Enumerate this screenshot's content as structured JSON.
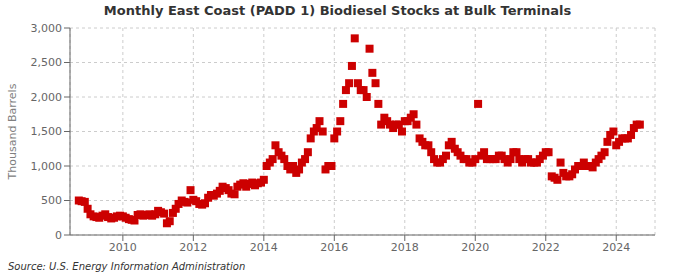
{
  "chart_data": {
    "type": "scatter",
    "title": "Monthly East Coast (PADD 1) Biodiesel Stocks at Bulk Terminals",
    "ylabel": "Thousand Barrels",
    "annotations": [
      "Source: U.S. Energy Information Administration"
    ],
    "color": "#CC0000",
    "marker": "square",
    "grid": true,
    "xlim": [
      2008.5,
      2025.1
    ],
    "xticks": [
      2010,
      2012,
      2014,
      2016,
      2018,
      2020,
      2022,
      2024
    ],
    "ylim": [
      0,
      3000
    ],
    "yticks": [
      0,
      500,
      {
        "value": 1000,
        "label": "1,000"
      },
      {
        "value": 1500,
        "label": "1,500"
      },
      {
        "value": 2000,
        "label": "2,000"
      },
      {
        "value": 2500,
        "label": "2,500"
      },
      {
        "value": 3000,
        "label": "3,000"
      }
    ],
    "x": [
      2008.75,
      2008.83,
      2008.92,
      2009.0,
      2009.08,
      2009.17,
      2009.25,
      2009.33,
      2009.42,
      2009.5,
      2009.58,
      2009.67,
      2009.75,
      2009.83,
      2009.92,
      2010.0,
      2010.08,
      2010.17,
      2010.25,
      2010.33,
      2010.42,
      2010.5,
      2010.58,
      2010.67,
      2010.75,
      2010.83,
      2010.92,
      2011.0,
      2011.08,
      2011.17,
      2011.25,
      2011.33,
      2011.42,
      2011.5,
      2011.58,
      2011.67,
      2011.75,
      2011.83,
      2011.92,
      2012.0,
      2012.08,
      2012.17,
      2012.25,
      2012.33,
      2012.42,
      2012.5,
      2012.58,
      2012.67,
      2012.75,
      2012.83,
      2012.92,
      2013.0,
      2013.08,
      2013.17,
      2013.25,
      2013.33,
      2013.42,
      2013.5,
      2013.58,
      2013.67,
      2013.75,
      2013.83,
      2013.92,
      2014.0,
      2014.08,
      2014.17,
      2014.25,
      2014.33,
      2014.42,
      2014.5,
      2014.58,
      2014.67,
      2014.75,
      2014.83,
      2014.92,
      2015.0,
      2015.08,
      2015.17,
      2015.25,
      2015.33,
      2015.42,
      2015.5,
      2015.58,
      2015.67,
      2015.75,
      2015.83,
      2015.92,
      2016.0,
      2016.08,
      2016.17,
      2016.25,
      2016.33,
      2016.42,
      2016.5,
      2016.58,
      2016.67,
      2016.75,
      2016.83,
      2016.92,
      2017.0,
      2017.08,
      2017.17,
      2017.25,
      2017.33,
      2017.42,
      2017.5,
      2017.58,
      2017.67,
      2017.75,
      2017.83,
      2017.92,
      2018.0,
      2018.08,
      2018.17,
      2018.25,
      2018.33,
      2018.42,
      2018.5,
      2018.58,
      2018.67,
      2018.75,
      2018.83,
      2018.92,
      2019.0,
      2019.08,
      2019.17,
      2019.25,
      2019.33,
      2019.42,
      2019.5,
      2019.58,
      2019.67,
      2019.75,
      2019.83,
      2019.92,
      2020.0,
      2020.08,
      2020.17,
      2020.25,
      2020.33,
      2020.42,
      2020.5,
      2020.58,
      2020.67,
      2020.75,
      2020.83,
      2020.92,
      2021.0,
      2021.08,
      2021.17,
      2021.25,
      2021.33,
      2021.42,
      2021.5,
      2021.58,
      2021.67,
      2021.75,
      2021.83,
      2021.92,
      2022.0,
      2022.08,
      2022.17,
      2022.25,
      2022.33,
      2022.42,
      2022.5,
      2022.58,
      2022.67,
      2022.75,
      2022.83,
      2022.92,
      2023.0,
      2023.08,
      2023.17,
      2023.25,
      2023.33,
      2023.42,
      2023.5,
      2023.58,
      2023.67,
      2023.75,
      2023.83,
      2023.92,
      2024.0,
      2024.08,
      2024.17,
      2024.25,
      2024.33,
      2024.42,
      2024.5,
      2024.58,
      2024.67
    ],
    "values": [
      500,
      490,
      480,
      380,
      300,
      270,
      260,
      250,
      280,
      300,
      260,
      240,
      250,
      270,
      280,
      270,
      250,
      230,
      220,
      210,
      290,
      300,
      280,
      290,
      300,
      280,
      300,
      350,
      330,
      310,
      170,
      200,
      320,
      380,
      450,
      500,
      480,
      470,
      650,
      510,
      490,
      450,
      440,
      460,
      540,
      580,
      570,
      600,
      640,
      700,
      680,
      650,
      600,
      590,
      700,
      730,
      750,
      700,
      740,
      760,
      720,
      750,
      760,
      800,
      1000,
      1050,
      1100,
      1300,
      1200,
      1150,
      1100,
      1000,
      950,
      1000,
      900,
      950,
      1050,
      1100,
      1200,
      1400,
      1500,
      1550,
      1650,
      1500,
      950,
      1000,
      1000,
      1400,
      1500,
      1650,
      1900,
      2100,
      2200,
      2450,
      2850,
      2200,
      2100,
      2100,
      2000,
      2700,
      2350,
      2200,
      1900,
      1600,
      1700,
      1650,
      1600,
      1550,
      1600,
      1600,
      1500,
      1650,
      1650,
      1700,
      1750,
      1600,
      1400,
      1350,
      1300,
      1300,
      1200,
      1100,
      1050,
      1050,
      1100,
      1150,
      1300,
      1350,
      1250,
      1200,
      1150,
      1100,
      1100,
      1050,
      1050,
      1100,
      1900,
      1150,
      1200,
      1100,
      1100,
      1100,
      1100,
      1150,
      1150,
      1100,
      1050,
      1100,
      1200,
      1200,
      1100,
      1050,
      1100,
      1100,
      1050,
      1050,
      1050,
      1100,
      1150,
      1200,
      1200,
      850,
      830,
      800,
      1050,
      900,
      850,
      850,
      880,
      950,
      1000,
      1000,
      1050,
      1000,
      1000,
      980,
      1050,
      1100,
      1150,
      1200,
      1350,
      1450,
      1500,
      1300,
      1350,
      1400,
      1400,
      1400,
      1450,
      1550,
      1600,
      1600
    ]
  }
}
